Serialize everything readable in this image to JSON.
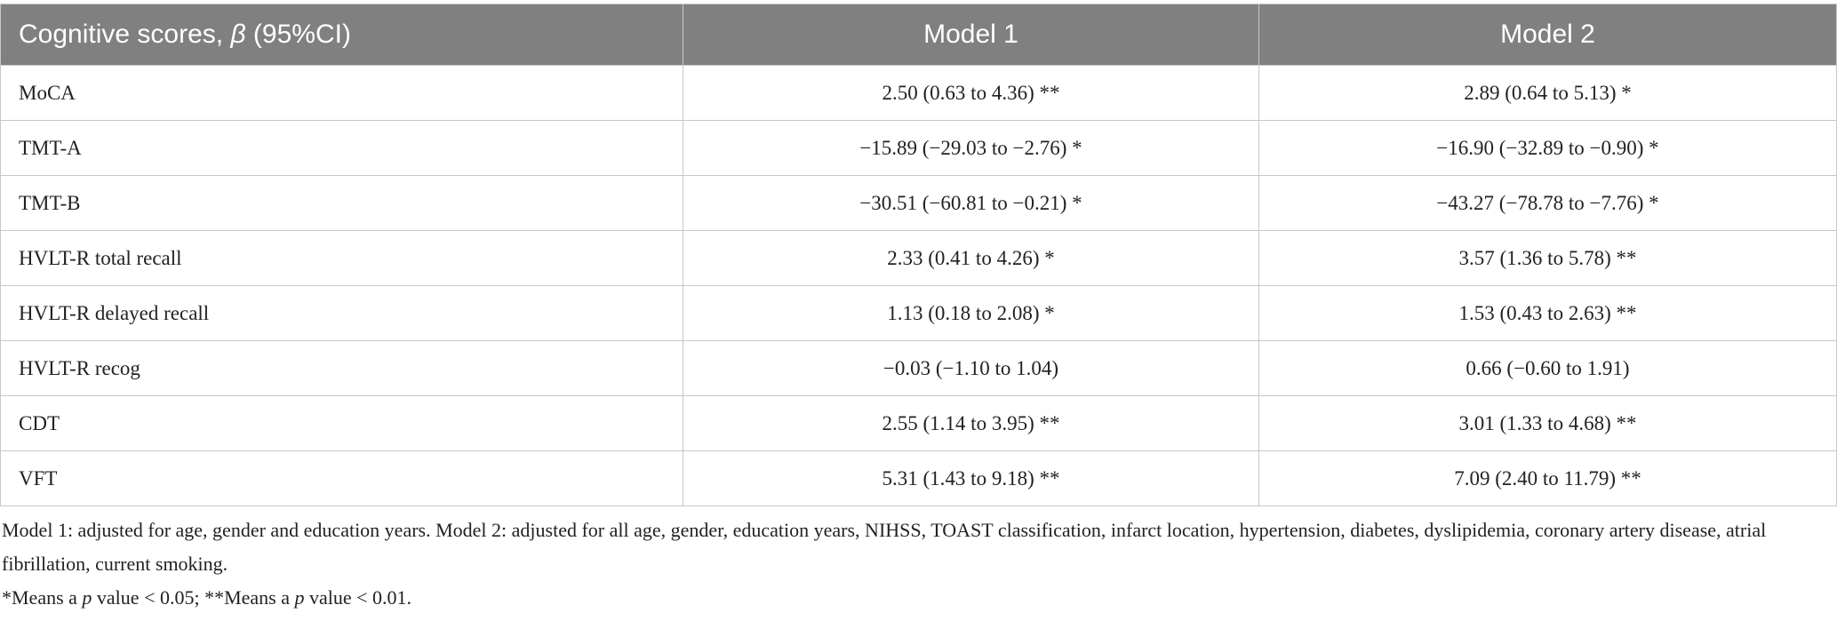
{
  "table": {
    "header": [
      [
        {
          "text": "Cognitive scores, "
        },
        {
          "text": "β",
          "italic": true
        },
        {
          "text": " (95%CI)"
        }
      ],
      [
        {
          "text": "Model 1"
        }
      ],
      [
        {
          "text": "Model 2"
        }
      ]
    ],
    "rows": [
      [
        "MoCA",
        "2.50 (0.63 to 4.36) **",
        "2.89 (0.64 to 5.13) *"
      ],
      [
        "TMT-A",
        "−15.89 (−29.03 to −2.76) *",
        "−16.90 (−32.89 to −0.90) *"
      ],
      [
        "TMT-B",
        "−30.51 (−60.81 to −0.21) *",
        "−43.27 (−78.78 to −7.76) *"
      ],
      [
        "HVLT-R total recall",
        "2.33 (0.41 to 4.26) *",
        "3.57 (1.36 to 5.78) **"
      ],
      [
        "HVLT-R delayed recall",
        "1.13 (0.18 to 2.08) *",
        "1.53 (0.43 to 2.63) **"
      ],
      [
        "HVLT-R recog",
        "−0.03 (−1.10 to 1.04)",
        "0.66 (−0.60 to 1.91)"
      ],
      [
        "CDT",
        "2.55 (1.14 to 3.95) **",
        "3.01 (1.33 to 4.68) **"
      ],
      [
        "VFT",
        "5.31 (1.43 to 9.18) **",
        "7.09 (2.40 to 11.79) **"
      ]
    ]
  },
  "footnotes": [
    [
      {
        "text": "Model 1: adjusted for age, gender and education years. Model 2: adjusted for all age, gender, education years, NIHSS, TOAST classification, infarct location, hypertension, diabetes, dyslipidemia, coronary artery disease, atrial fibrillation, current smoking."
      }
    ],
    [
      {
        "text": "*Means a "
      },
      {
        "text": "p",
        "italic": true
      },
      {
        "text": " value < 0.05; **Means a "
      },
      {
        "text": "p",
        "italic": true
      },
      {
        "text": " value < 0.01."
      }
    ]
  ]
}
